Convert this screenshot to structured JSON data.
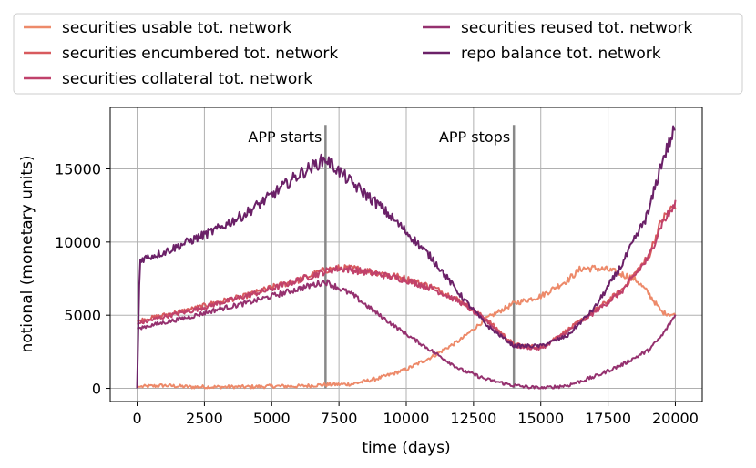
{
  "chart_data": {
    "type": "line",
    "xlabel": "time (days)",
    "ylabel": "notional (monetary units)",
    "xlim": [
      -1000,
      21000
    ],
    "ylim": [
      -900,
      19200
    ],
    "xticks": [
      0,
      2500,
      5000,
      7500,
      10000,
      12500,
      15000,
      17500,
      20000
    ],
    "yticks": [
      0,
      5000,
      10000,
      15000
    ],
    "grid": true,
    "legend_position": "above plot, two columns",
    "annotations": [
      {
        "text": "APP starts",
        "x": 7000
      },
      {
        "text": "APP stops",
        "x": 14000
      }
    ],
    "vlines": [
      {
        "x": 7000,
        "y_top": 18000,
        "color": "#888888"
      },
      {
        "x": 14000,
        "y_top": 18000,
        "color": "#888888"
      }
    ],
    "series": [
      {
        "name": "securities usable tot. network",
        "color": "#ed8a6a",
        "points": [
          [
            0,
            100
          ],
          [
            1000,
            200
          ],
          [
            2000,
            100
          ],
          [
            3000,
            100
          ],
          [
            4000,
            100
          ],
          [
            5000,
            150
          ],
          [
            6000,
            150
          ],
          [
            7000,
            250
          ],
          [
            8000,
            300
          ],
          [
            9000,
            700
          ],
          [
            10000,
            1300
          ],
          [
            11000,
            2200
          ],
          [
            12000,
            3300
          ],
          [
            13000,
            4800
          ],
          [
            14000,
            5800
          ],
          [
            15000,
            6300
          ],
          [
            16000,
            7400
          ],
          [
            16500,
            8200
          ],
          [
            17000,
            8200
          ],
          [
            17500,
            8100
          ],
          [
            18000,
            7800
          ],
          [
            18500,
            7500
          ],
          [
            19000,
            6500
          ],
          [
            19500,
            5200
          ],
          [
            20000,
            5000
          ]
        ]
      },
      {
        "name": "securities encumbered tot. network",
        "color": "#d85a5e",
        "points": [
          [
            0,
            4600
          ],
          [
            1000,
            5000
          ],
          [
            2000,
            5400
          ],
          [
            3000,
            5900
          ],
          [
            4000,
            6300
          ],
          [
            5000,
            6900
          ],
          [
            6000,
            7400
          ],
          [
            7000,
            8100
          ],
          [
            7500,
            8200
          ],
          [
            8000,
            8200
          ],
          [
            9000,
            7900
          ],
          [
            10000,
            7500
          ],
          [
            11000,
            6900
          ],
          [
            12000,
            6000
          ],
          [
            13000,
            4700
          ],
          [
            14000,
            3000
          ],
          [
            15000,
            2800
          ],
          [
            16000,
            4000
          ],
          [
            17000,
            5300
          ],
          [
            18000,
            6700
          ],
          [
            19000,
            9000
          ],
          [
            19500,
            11500
          ],
          [
            20000,
            12600
          ]
        ]
      },
      {
        "name": "securities collateral tot. network",
        "color": "#c0416b",
        "points": [
          [
            0,
            4400
          ],
          [
            1000,
            4900
          ],
          [
            2000,
            5300
          ],
          [
            3000,
            5800
          ],
          [
            4000,
            6300
          ],
          [
            5000,
            6800
          ],
          [
            6000,
            7400
          ],
          [
            7000,
            8000
          ],
          [
            7500,
            8200
          ],
          [
            8000,
            8100
          ],
          [
            9000,
            7800
          ],
          [
            10000,
            7400
          ],
          [
            11000,
            6800
          ],
          [
            12000,
            5900
          ],
          [
            13000,
            4600
          ],
          [
            14000,
            2900
          ],
          [
            15000,
            2700
          ],
          [
            16000,
            3900
          ],
          [
            17000,
            5200
          ],
          [
            18000,
            6600
          ],
          [
            19000,
            8900
          ],
          [
            19500,
            11300
          ],
          [
            20000,
            12500
          ]
        ]
      },
      {
        "name": "securities reused tot. network",
        "color": "#95316f",
        "points": [
          [
            0,
            4100
          ],
          [
            1000,
            4500
          ],
          [
            2000,
            4900
          ],
          [
            3000,
            5400
          ],
          [
            4000,
            5800
          ],
          [
            5000,
            6300
          ],
          [
            6000,
            6800
          ],
          [
            7000,
            7300
          ],
          [
            8000,
            6400
          ],
          [
            9000,
            5000
          ],
          [
            10000,
            3700
          ],
          [
            11000,
            2500
          ],
          [
            12000,
            1300
          ],
          [
            13000,
            600
          ],
          [
            14000,
            200
          ],
          [
            15000,
            0
          ],
          [
            16000,
            200
          ],
          [
            17000,
            800
          ],
          [
            18000,
            1600
          ],
          [
            19000,
            2600
          ],
          [
            19500,
            3600
          ],
          [
            20000,
            5000
          ]
        ]
      },
      {
        "name": "repo balance tot. network",
        "color": "#6b2168",
        "points": [
          [
            0,
            0
          ],
          [
            100,
            8800
          ],
          [
            1000,
            9300
          ],
          [
            2000,
            10100
          ],
          [
            3000,
            10900
          ],
          [
            4000,
            11900
          ],
          [
            5000,
            13200
          ],
          [
            6000,
            14600
          ],
          [
            7000,
            15700
          ],
          [
            8000,
            14000
          ],
          [
            9000,
            12500
          ],
          [
            10000,
            10700
          ],
          [
            11000,
            8800
          ],
          [
            12000,
            6400
          ],
          [
            13000,
            4300
          ],
          [
            14000,
            2900
          ],
          [
            15000,
            2900
          ],
          [
            16000,
            3600
          ],
          [
            17000,
            5500
          ],
          [
            18000,
            8400
          ],
          [
            19000,
            12000
          ],
          [
            19500,
            15500
          ],
          [
            20000,
            17800
          ]
        ]
      }
    ]
  }
}
